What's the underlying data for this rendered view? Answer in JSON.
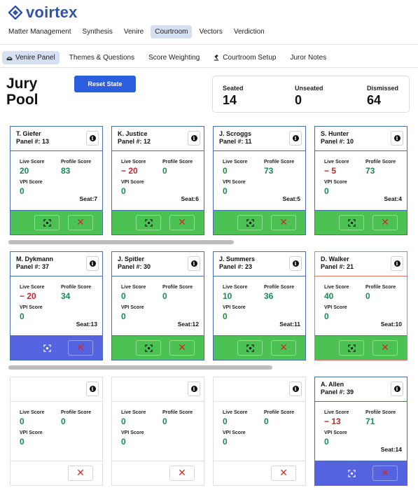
{
  "brand": {
    "name": "voirtex"
  },
  "topnav": [
    {
      "label": "Matter Management",
      "active": false
    },
    {
      "label": "Synthesis",
      "active": false
    },
    {
      "label": "Venire",
      "active": false
    },
    {
      "label": "Courtroom",
      "active": true
    },
    {
      "label": "Vectors",
      "active": false
    },
    {
      "label": "Verdiction",
      "active": false
    }
  ],
  "subnav": [
    {
      "label": "Venire Panel",
      "active": true,
      "icon": "gavel-icon"
    },
    {
      "label": "Themes & Questions",
      "active": false
    },
    {
      "label": "Score Weighting",
      "active": false
    },
    {
      "label": "Courtroom Setup",
      "active": false,
      "icon": "gavel-icon"
    },
    {
      "label": "Juror Notes",
      "active": false
    }
  ],
  "page": {
    "title_line1": "Jury",
    "title_line2": "Pool",
    "reset_label": "Reset State"
  },
  "stats": {
    "seated_label": "Seated",
    "seated": "14",
    "unseated_label": "Unseated",
    "unseated": "0",
    "dismissed_label": "Dismissed",
    "dismissed": "64"
  },
  "labels": {
    "live": "Live Score",
    "profile": "Profile Score",
    "vpi": "VPI Score"
  },
  "jurors": [
    {
      "name": "T. Giefer",
      "panel": "Panel #: 13",
      "live": "20",
      "profile": "83",
      "vpi": "0",
      "seat": "Seat:7",
      "footer": "green",
      "border": "blue"
    },
    {
      "name": "K. Justice",
      "panel": "Panel #: 12",
      "live": "− 20",
      "profile": "0",
      "vpi": "0",
      "seat": "Seat:6",
      "footer": "green",
      "border": "blue"
    },
    {
      "name": "J. Scroggs",
      "panel": "Panel #: 11",
      "live": "0",
      "profile": "73",
      "vpi": "0",
      "seat": "Seat:5",
      "footer": "green",
      "border": "blue"
    },
    {
      "name": "S. Hunter",
      "panel": "Panel #: 10",
      "live": "− 5",
      "profile": "73",
      "vpi": "0",
      "seat": "Seat:4",
      "footer": "green",
      "border": "blue"
    },
    {
      "name": "M. Dykmann",
      "panel": "Panel #: 37",
      "live": "− 20",
      "profile": "34",
      "vpi": "0",
      "seat": "Seat:13",
      "footer": "blue",
      "border": "blue"
    },
    {
      "name": "J. Spitler",
      "panel": "Panel #: 30",
      "live": "0",
      "profile": "0",
      "vpi": "0",
      "seat": "Seat:12",
      "footer": "green",
      "border": "blue"
    },
    {
      "name": "J. Summers",
      "panel": "Panel #: 23",
      "live": "10",
      "profile": "36",
      "vpi": "0",
      "seat": "Seat:11",
      "footer": "green",
      "border": "blue"
    },
    {
      "name": "D. Walker",
      "panel": "Panel #: 21",
      "live": "40",
      "profile": "0",
      "vpi": "0",
      "seat": "Seat:10",
      "footer": "green",
      "border": "red"
    },
    {
      "name": "",
      "panel": "",
      "live": "0",
      "profile": "0",
      "vpi": "0",
      "seat": "",
      "footer": "white",
      "border": "empty"
    },
    {
      "name": "",
      "panel": "",
      "live": "0",
      "profile": "0",
      "vpi": "0",
      "seat": "",
      "footer": "white",
      "border": "empty"
    },
    {
      "name": "",
      "panel": "",
      "live": "0",
      "profile": "0",
      "vpi": "0",
      "seat": "",
      "footer": "white",
      "border": "empty"
    },
    {
      "name": "A. Allen",
      "panel": "Panel #: 39",
      "live": "− 13",
      "profile": "71",
      "vpi": "0",
      "seat": "Seat:14",
      "footer": "blue",
      "border": "blue"
    }
  ],
  "colors": {
    "accent": "#2b5fe0",
    "seated_green": "#4cc154",
    "selected_blue": "#5563e0",
    "score_positive": "#1a8a52",
    "score_negative": "#c0262c"
  }
}
